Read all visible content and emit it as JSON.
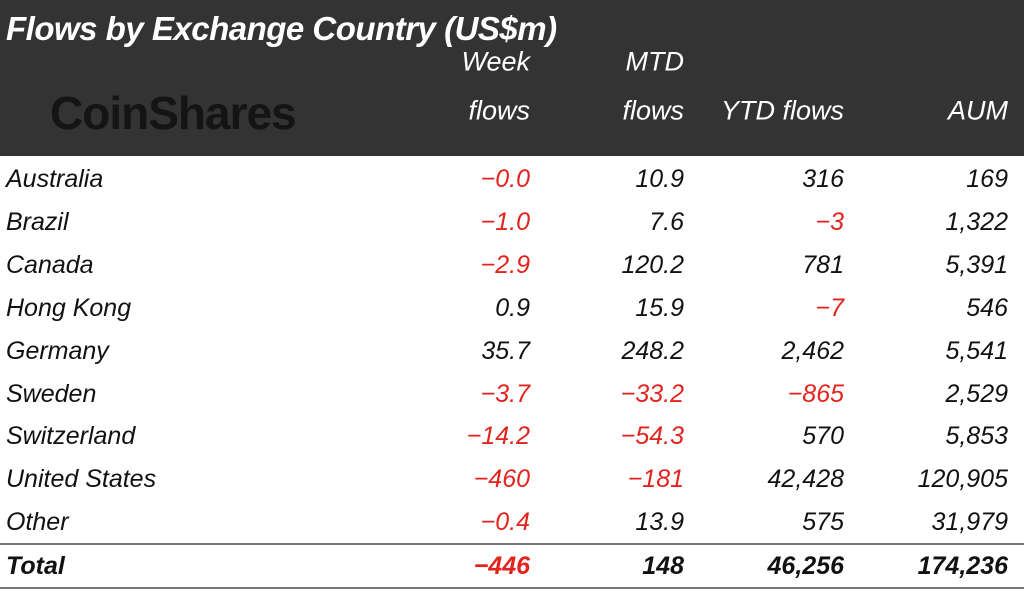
{
  "title": "Flows by Exchange Country (US$m)",
  "logo": "CoinShares",
  "colors": {
    "header_bg": "#333333",
    "negative": "#e3231e",
    "text": "#111111"
  },
  "chart_data": {
    "type": "table",
    "title": "Flows by Exchange Country (US$m)",
    "columns": [
      {
        "line1": "Week",
        "line2": "flows"
      },
      {
        "line1": "MTD",
        "line2": "flows"
      },
      {
        "line1": "",
        "line2": "YTD flows"
      },
      {
        "line1": "",
        "line2": "AUM"
      }
    ],
    "rows": [
      {
        "name": "Australia",
        "values": [
          "-0.0",
          "10.9",
          "316",
          "169"
        ]
      },
      {
        "name": "Brazil",
        "values": [
          "-1.0",
          "7.6",
          "-3",
          "1,322"
        ]
      },
      {
        "name": "Canada",
        "values": [
          "-2.9",
          "120.2",
          "781",
          "5,391"
        ]
      },
      {
        "name": "Hong Kong",
        "values": [
          "0.9",
          "15.9",
          "-7",
          "546"
        ]
      },
      {
        "name": "Germany",
        "values": [
          "35.7",
          "248.2",
          "2,462",
          "5,541"
        ]
      },
      {
        "name": "Sweden",
        "values": [
          "-3.7",
          "-33.2",
          "-865",
          "2,529"
        ]
      },
      {
        "name": "Switzerland",
        "values": [
          "-14.2",
          "-54.3",
          "570",
          "5,853"
        ]
      },
      {
        "name": "United States",
        "values": [
          "-460",
          "-181",
          "42,428",
          "120,905"
        ]
      },
      {
        "name": "Other",
        "values": [
          "-0.4",
          "13.9",
          "575",
          "31,979"
        ]
      }
    ],
    "total": {
      "name": "Total",
      "values": [
        "-446",
        "148",
        "46,256",
        "174,236"
      ]
    }
  }
}
